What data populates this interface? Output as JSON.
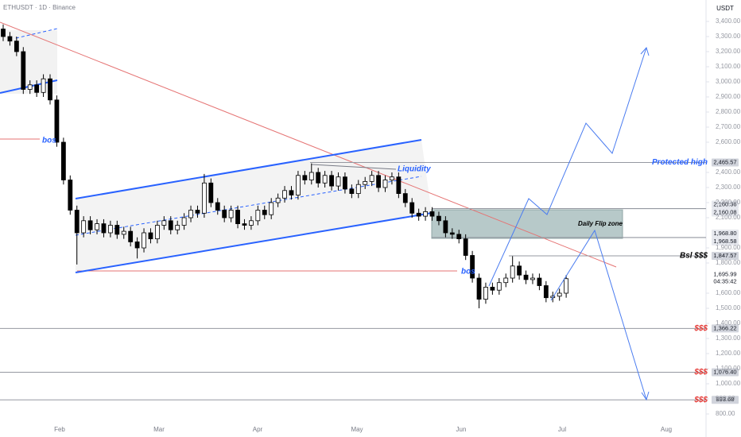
{
  "chart_data": {
    "type": "candlestick",
    "title": "ETHUSDT · 1D · Binance",
    "y_axis_label": "USDT",
    "up_color": "#ffffff",
    "down_color": "#000000",
    "ylim": [
      800,
      3400
    ],
    "yticks": [
      {
        "value": 3400,
        "label": "3,400.00"
      },
      {
        "value": 3300,
        "label": "3,300.00"
      },
      {
        "value": 3200,
        "label": "3,200.00"
      },
      {
        "value": 3100,
        "label": "3,100.00"
      },
      {
        "value": 3000,
        "label": "3,000.00"
      },
      {
        "value": 2900,
        "label": "2,900.00"
      },
      {
        "value": 2800,
        "label": "2,800.00"
      },
      {
        "value": 2700,
        "label": "2,700.00"
      },
      {
        "value": 2600,
        "label": "2,600.00"
      },
      {
        "value": 2400,
        "label": "2,400.00"
      },
      {
        "value": 2300,
        "label": "2,300.00"
      },
      {
        "value": 2200,
        "label": "2,200.00"
      },
      {
        "value": 2100,
        "label": "2,100.00"
      },
      {
        "value": 1900,
        "label": "1,900.00"
      },
      {
        "value": 1800,
        "label": "1,800.00"
      },
      {
        "value": 1600,
        "label": "1,600.00"
      },
      {
        "value": 1500,
        "label": "1,500.00"
      },
      {
        "value": 1400,
        "label": "1,400.00"
      },
      {
        "value": 1300,
        "label": "1,300.00"
      },
      {
        "value": 1200,
        "label": "1,200.00"
      },
      {
        "value": 1100,
        "label": "1,100.00"
      },
      {
        "value": 1000,
        "label": "1,000.00"
      },
      {
        "value": 900,
        "label": "900.00"
      },
      {
        "value": 800,
        "label": "800.00"
      }
    ],
    "categories": [
      "Feb",
      "Mar",
      "Apr",
      "May",
      "Jun",
      "Jul",
      "Aug"
    ],
    "open": [
      3350,
      3300,
      3270,
      3200,
      2950,
      2980,
      2930,
      3020,
      2880,
      2600,
      2350,
      2150,
      2000,
      2080,
      2020,
      2060,
      2000,
      2050,
      1990,
      2010,
      1940,
      1900,
      2000,
      1960,
      2050,
      2080,
      2020,
      2050,
      2100,
      2150,
      2130,
      2330,
      2200,
      2150,
      2100,
      2150,
      2060,
      2050,
      2080,
      2150,
      2120,
      2200,
      2230,
      2280,
      2250,
      2380,
      2350,
      2400,
      2330,
      2380,
      2310,
      2370,
      2290,
      2260,
      2320,
      2340,
      2380,
      2300,
      2350,
      2370,
      2260,
      2200,
      2130,
      2110,
      2140,
      2110,
      2080,
      2000,
      1990,
      1960,
      1850,
      1700,
      1560,
      1640,
      1620,
      1670,
      1700,
      1780,
      1720,
      1690,
      1700,
      1650,
      1570,
      1580,
      1600
    ],
    "high": [
      3380,
      3330,
      3300,
      3230,
      3010,
      3010,
      3050,
      3050,
      2910,
      2630,
      2380,
      2180,
      2110,
      2110,
      2090,
      2090,
      2080,
      2080,
      2040,
      2040,
      1970,
      2030,
      2030,
      2080,
      2110,
      2110,
      2080,
      2130,
      2180,
      2180,
      2390,
      2360,
      2230,
      2180,
      2180,
      2180,
      2090,
      2110,
      2180,
      2180,
      2230,
      2260,
      2310,
      2310,
      2410,
      2410,
      2460,
      2430,
      2410,
      2410,
      2400,
      2400,
      2320,
      2350,
      2370,
      2410,
      2410,
      2380,
      2400,
      2400,
      2290,
      2230,
      2160,
      2170,
      2170,
      2140,
      2110,
      2030,
      2020,
      1990,
      1880,
      1730,
      1670,
      1670,
      1700,
      1730,
      1845,
      1810,
      1750,
      1730,
      1730,
      1680,
      1610,
      1630,
      1720
    ],
    "low": [
      3270,
      3240,
      3170,
      2920,
      2920,
      2900,
      2900,
      2850,
      2570,
      2320,
      2120,
      1790,
      1970,
      1990,
      1990,
      1970,
      1970,
      1960,
      1960,
      1910,
      1830,
      1870,
      1930,
      1930,
      2020,
      1990,
      1990,
      2020,
      2070,
      2100,
      2100,
      2170,
      2120,
      2070,
      2070,
      2030,
      2020,
      2020,
      2050,
      2090,
      2090,
      2170,
      2200,
      2220,
      2220,
      2320,
      2320,
      2300,
      2300,
      2280,
      2280,
      2260,
      2230,
      2230,
      2290,
      2310,
      2270,
      2270,
      2320,
      2230,
      2170,
      2100,
      2080,
      2080,
      2080,
      2050,
      1970,
      1960,
      1930,
      1820,
      1670,
      1500,
      1530,
      1590,
      1590,
      1640,
      1670,
      1690,
      1660,
      1660,
      1620,
      1540,
      1540,
      1550,
      1570
    ],
    "close": [
      3300,
      3270,
      3200,
      2950,
      2980,
      2930,
      3020,
      2880,
      2600,
      2350,
      2150,
      2000,
      2080,
      2020,
      2060,
      2000,
      2050,
      1990,
      2010,
      1940,
      1900,
      2000,
      1960,
      2050,
      2080,
      2020,
      2050,
      2100,
      2150,
      2130,
      2330,
      2200,
      2150,
      2100,
      2150,
      2060,
      2050,
      2080,
      2150,
      2120,
      2200,
      2230,
      2280,
      2250,
      2380,
      2350,
      2400,
      2330,
      2380,
      2310,
      2370,
      2290,
      2260,
      2320,
      2340,
      2380,
      2300,
      2350,
      2370,
      2260,
      2200,
      2130,
      2110,
      2140,
      2110,
      2080,
      2000,
      1990,
      1960,
      1850,
      1700,
      1560,
      1640,
      1620,
      1670,
      1700,
      1780,
      1720,
      1690,
      1700,
      1650,
      1570,
      1580,
      1600,
      1696
    ],
    "levels": [
      {
        "value": 2465.57,
        "label": "2,465.57",
        "text": "Protected high",
        "text_color": "#2962ff"
      },
      {
        "value": 2160.36,
        "label": "2,160.36"
      },
      {
        "value": 2160.08,
        "label": "2,160.08"
      },
      {
        "value": 1968.8,
        "label": "1,968.80"
      },
      {
        "value": 1968.58,
        "label": "1,968.58"
      },
      {
        "value": 1847.57,
        "label": "1,847.57",
        "text": "Bsl $$$",
        "text_color": "#000000"
      },
      {
        "value": 1366.22,
        "label": "1,366.22",
        "text": "$$$",
        "text_color": "#e53935"
      },
      {
        "value": 1076.4,
        "label": "1,076.40",
        "text": "$$$",
        "text_color": "#e53935"
      },
      {
        "value": 893.68,
        "label": "893.68",
        "text": "$$$",
        "text_color": "#e53935"
      }
    ],
    "current_price": {
      "value": 1695.99,
      "label": "1,695.99",
      "countdown": "04:35:42"
    },
    "annotations": [
      "Daily Flip zone",
      "Liquidity",
      "bos",
      "bos"
    ]
  }
}
